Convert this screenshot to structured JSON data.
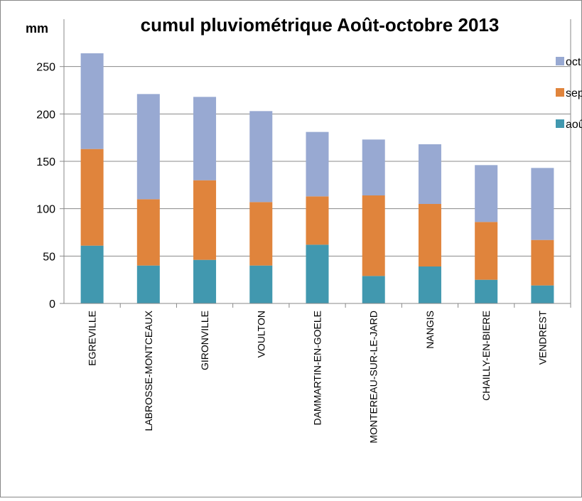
{
  "chart_data": {
    "type": "stacked_bar",
    "title": "cumul pluviométrique Août-octobre 2013",
    "y_label": "mm",
    "categories": [
      "EGREVILLE",
      "LABROSSE-MONTCEAUX",
      "GIRONVILLE",
      "VOULTON",
      "DAMMARTIN-EN-GOELE",
      "MONTEREAU-SUR-LE-JARD",
      "NANGIS",
      "CHAILLY-EN-BIERE",
      "VENDREST"
    ],
    "series": [
      {
        "name": "août",
        "color": "#4198af",
        "values": [
          61,
          40,
          46,
          40,
          62,
          29,
          39,
          25,
          19
        ]
      },
      {
        "name": "sept",
        "color": "#e0843c",
        "values": [
          102,
          70,
          84,
          67,
          51,
          85,
          66,
          61,
          48
        ]
      },
      {
        "name": "oct",
        "color": "#98a9d2",
        "values": [
          101,
          111,
          88,
          96,
          68,
          59,
          63,
          60,
          76
        ]
      }
    ],
    "ylim": [
      0,
      300
    ],
    "yticks": [
      0,
      50,
      100,
      150,
      200,
      250
    ],
    "grid": true,
    "legend": "top-right"
  }
}
